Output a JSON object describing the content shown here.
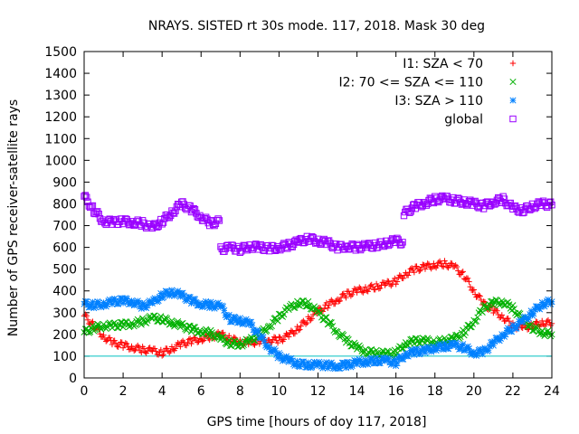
{
  "chart_data": {
    "type": "scatter",
    "title": "NRAYS. SISTED rt 30s mode. 117, 2018. Mask 30 deg",
    "xlabel": "GPS time [hours of doy 117, 2018]",
    "ylabel": "Number of GPS receiver-satellite rays",
    "xlim": [
      0,
      24
    ],
    "ylim": [
      0,
      1500
    ],
    "xticks": [
      0,
      2,
      4,
      6,
      8,
      10,
      12,
      14,
      16,
      18,
      20,
      22,
      24
    ],
    "yticks": [
      0,
      100,
      200,
      300,
      400,
      500,
      600,
      700,
      800,
      900,
      1000,
      1100,
      1200,
      1300,
      1400,
      1500
    ],
    "reference_line": {
      "y": 100,
      "color": "#00c0c0"
    },
    "legend_position": "top-right",
    "series": [
      {
        "name": "I1: SZA < 70",
        "color": "#ff0000",
        "marker": "plus",
        "x": [
          0,
          0.5,
          1,
          1.5,
          2,
          2.5,
          3,
          3.5,
          4,
          4.5,
          5,
          5.5,
          6,
          6.5,
          7,
          7.5,
          8,
          8.5,
          9,
          9.5,
          10,
          10.5,
          11,
          11.5,
          12,
          12.5,
          13,
          13.5,
          14,
          14.5,
          15,
          15.5,
          16,
          16.5,
          17,
          17.5,
          18,
          18.5,
          19,
          19.5,
          20,
          20.5,
          21,
          21.5,
          22,
          22.5,
          23,
          23.5,
          24
        ],
        "y": [
          285,
          240,
          190,
          160,
          150,
          140,
          130,
          125,
          115,
          135,
          155,
          170,
          180,
          190,
          200,
          180,
          165,
          160,
          170,
          175,
          175,
          195,
          230,
          270,
          305,
          335,
          360,
          385,
          400,
          410,
          420,
          430,
          445,
          480,
          500,
          510,
          520,
          525,
          510,
          470,
          400,
          340,
          310,
          280,
          240,
          230,
          240,
          255,
          250
        ]
      },
      {
        "name": "I2: 70 <= SZA <= 110",
        "color": "#00b000",
        "marker": "cross",
        "x": [
          0,
          0.5,
          1,
          1.5,
          2,
          2.5,
          3,
          3.5,
          4,
          4.5,
          5,
          5.5,
          6,
          6.5,
          7,
          7.5,
          8,
          8.5,
          9,
          9.5,
          10,
          10.5,
          11,
          11.5,
          12,
          12.5,
          13,
          13.5,
          14,
          14.5,
          15,
          15.5,
          16,
          16.5,
          17,
          17.5,
          18,
          18.5,
          19,
          19.5,
          20,
          20.5,
          21,
          21.5,
          22,
          22.5,
          23,
          23.5,
          24
        ],
        "y": [
          210,
          230,
          240,
          240,
          245,
          250,
          260,
          275,
          270,
          255,
          240,
          225,
          215,
          205,
          180,
          160,
          155,
          170,
          200,
          240,
          280,
          320,
          345,
          340,
          300,
          260,
          210,
          170,
          140,
          120,
          115,
          110,
          115,
          160,
          170,
          170,
          165,
          170,
          180,
          210,
          260,
          320,
          345,
          350,
          320,
          270,
          230,
          210,
          200
        ]
      },
      {
        "name": "I3: SZA > 110",
        "color": "#0080ff",
        "marker": "star",
        "x": [
          0,
          0.5,
          1,
          1.5,
          2,
          2.5,
          3,
          3.5,
          4,
          4.5,
          5,
          5.5,
          6,
          6.5,
          7,
          7.5,
          8,
          8.5,
          9,
          9.5,
          10,
          10.5,
          11,
          11.5,
          12,
          12.5,
          13,
          13.5,
          14,
          14.5,
          15,
          15.5,
          16,
          16.5,
          17,
          17.5,
          18,
          18.5,
          19,
          19.5,
          20,
          20.5,
          21,
          21.5,
          22,
          22.5,
          23,
          23.5,
          24
        ],
        "y": [
          340,
          335,
          340,
          350,
          355,
          350,
          330,
          345,
          380,
          395,
          380,
          355,
          340,
          335,
          330,
          270,
          265,
          250,
          195,
          140,
          100,
          80,
          65,
          60,
          60,
          58,
          55,
          60,
          70,
          75,
          80,
          80,
          70,
          110,
          120,
          125,
          140,
          145,
          150,
          140,
          115,
          120,
          160,
          200,
          230,
          260,
          300,
          340,
          350
        ]
      },
      {
        "name": "global",
        "color": "#9900ff",
        "marker": "square",
        "x": [
          0,
          0.5,
          1,
          1.5,
          2,
          2.5,
          3,
          3.5,
          4,
          4.5,
          5,
          5.5,
          6,
          6.5,
          7,
          7.01,
          7.5,
          8,
          8.5,
          9,
          9.5,
          10,
          10.5,
          11,
          11.5,
          12,
          12.5,
          13,
          13.5,
          14,
          14.5,
          15,
          15.5,
          16,
          16.4,
          16.41,
          17,
          17.5,
          18,
          18.5,
          19,
          19.5,
          20,
          20.5,
          21,
          21.5,
          22,
          22.5,
          23,
          23.5,
          24
        ],
        "y": [
          835,
          770,
          720,
          715,
          720,
          715,
          710,
          690,
          720,
          760,
          800,
          775,
          740,
          710,
          720,
          590,
          600,
          590,
          605,
          600,
          595,
          600,
          610,
          625,
          640,
          630,
          620,
          600,
          605,
          600,
          605,
          610,
          620,
          630,
          620,
          755,
          790,
          805,
          820,
          825,
          815,
          810,
          800,
          790,
          810,
          820,
          780,
          770,
          790,
          800,
          795
        ]
      }
    ]
  }
}
